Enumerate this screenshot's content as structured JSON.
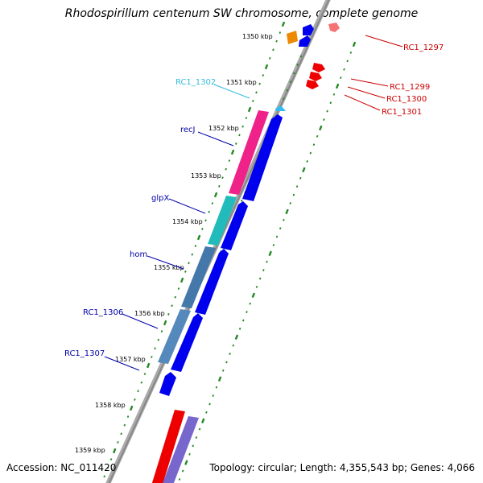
{
  "title": "Rhodospirillum centenum SW chromosome, complete genome",
  "footer": {
    "accession": "Accession: NC_011420",
    "topology": "Topology: circular; Length: 4,355,543 bp; Genes: 4,066"
  },
  "kbp_ticks": [
    "1350 kbp",
    "1351 kbp",
    "1352 kbp",
    "1353 kbp",
    "1354 kbp",
    "1355 kbp",
    "1356 kbp",
    "1357 kbp",
    "1358 kbp",
    "1359 kbp"
  ],
  "gene_labels_left": [
    {
      "name": "RC1_1302",
      "color": "#33bbdd"
    },
    {
      "name": "recJ",
      "color": "#0000aa"
    },
    {
      "name": "glpX",
      "color": "#0000aa"
    },
    {
      "name": "hom",
      "color": "#0000aa"
    },
    {
      "name": "RC1_1306",
      "color": "#0000aa"
    },
    {
      "name": "RC1_1307",
      "color": "#0000aa"
    }
  ],
  "gene_labels_right": [
    {
      "name": "RC1_1297",
      "color": "#cc0000"
    },
    {
      "name": "RC1_1299",
      "color": "#cc0000"
    },
    {
      "name": "RC1_1300",
      "color": "#cc0000"
    },
    {
      "name": "RC1_1301",
      "color": "#cc0000"
    }
  ],
  "colors": {
    "backbone": "#999999",
    "forward_cds": "#0000ee",
    "reverse_cds": "#ee0000",
    "tick_dots": "#228822",
    "recJ_feature": "#ee2288",
    "glpX_feature": "#22bbbb",
    "hom_feature": "#4477aa",
    "orange_feature": "#ee8800",
    "purple_feature": "#7766cc"
  }
}
